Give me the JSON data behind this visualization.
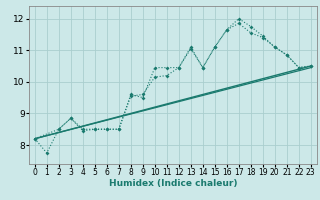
{
  "background_color": "#cce8e8",
  "grid_color": "#aacece",
  "line_color": "#1a7a6e",
  "xlabel": "Humidex (Indice chaleur)",
  "xlim": [
    -0.5,
    23.5
  ],
  "ylim": [
    7.4,
    12.4
  ],
  "yticks": [
    8,
    9,
    10,
    11,
    12
  ],
  "xticks": [
    0,
    1,
    2,
    3,
    4,
    5,
    6,
    7,
    8,
    9,
    10,
    11,
    12,
    13,
    14,
    15,
    16,
    17,
    18,
    19,
    20,
    21,
    22,
    23
  ],
  "dotted1_x": [
    0,
    1,
    2,
    3,
    4,
    5,
    6,
    7,
    8,
    9,
    10,
    11,
    12,
    13,
    14,
    15,
    16,
    17,
    18,
    19,
    20,
    21,
    22,
    23
  ],
  "dotted1_y": [
    8.2,
    7.75,
    8.5,
    8.85,
    8.45,
    8.5,
    8.5,
    8.5,
    9.6,
    9.5,
    10.45,
    10.45,
    10.45,
    11.1,
    10.45,
    11.1,
    11.65,
    12.0,
    11.75,
    11.45,
    11.1,
    10.85,
    10.45,
    10.5
  ],
  "dotted2_x": [
    0,
    2,
    3,
    4,
    5,
    6,
    7,
    8,
    9,
    10,
    11,
    12,
    13,
    14,
    15,
    16,
    17,
    18,
    19,
    20,
    21,
    22,
    23
  ],
  "dotted2_y": [
    8.2,
    8.5,
    8.85,
    8.5,
    8.5,
    8.5,
    8.5,
    9.55,
    9.6,
    10.15,
    10.2,
    10.45,
    11.05,
    10.45,
    11.1,
    11.65,
    11.85,
    11.55,
    11.4,
    11.1,
    10.85,
    10.45,
    10.5
  ],
  "line3_x": [
    0,
    23
  ],
  "line3_y": [
    8.2,
    10.5
  ],
  "line4_x": [
    0,
    23
  ],
  "line4_y": [
    8.2,
    10.45
  ]
}
